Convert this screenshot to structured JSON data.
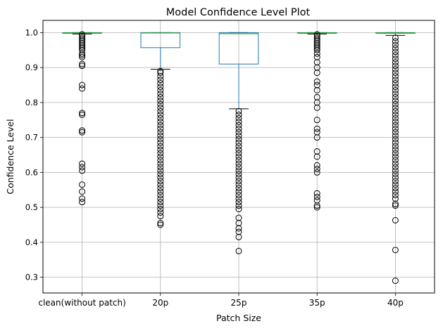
{
  "chart_data": {
    "type": "box",
    "title": "Model Confidence Level Plot",
    "xlabel": "Patch Size",
    "ylabel": "Confidence Level",
    "ylim": [
      0.255,
      1.035
    ],
    "yticks": [
      0.3,
      0.4,
      0.5,
      0.6,
      0.7,
      0.8,
      0.9,
      1.0
    ],
    "ytick_labels": [
      "0.3",
      "0.4",
      "0.5",
      "0.6",
      "0.7",
      "0.8",
      "0.9",
      "1.0"
    ],
    "grid": true,
    "categories": [
      "clean(without patch)",
      "20p",
      "25p",
      "35p",
      "40p"
    ],
    "boxes": [
      {
        "label": "clean(without patch)",
        "q1": 0.998,
        "median": 0.9995,
        "q3": 1.0,
        "whisker_low": 0.996,
        "whisker_high": 1.0,
        "outliers": [
          0.995,
          0.99,
          0.985,
          0.98,
          0.975,
          0.97,
          0.965,
          0.96,
          0.955,
          0.95,
          0.94,
          0.935,
          0.93,
          0.91,
          0.905,
          0.85,
          0.84,
          0.77,
          0.765,
          0.72,
          0.715,
          0.625,
          0.615,
          0.605,
          0.565,
          0.545,
          0.525,
          0.515
        ]
      },
      {
        "label": "20p",
        "q1": 0.957,
        "median": 0.999,
        "q3": 1.0,
        "whisker_low": 0.895,
        "whisker_high": 1.0,
        "outliers": [
          0.89,
          0.885,
          0.875,
          0.865,
          0.855,
          0.845,
          0.835,
          0.825,
          0.815,
          0.805,
          0.795,
          0.785,
          0.775,
          0.765,
          0.755,
          0.745,
          0.735,
          0.725,
          0.715,
          0.705,
          0.695,
          0.685,
          0.675,
          0.665,
          0.655,
          0.645,
          0.635,
          0.625,
          0.615,
          0.605,
          0.595,
          0.585,
          0.575,
          0.565,
          0.555,
          0.545,
          0.535,
          0.525,
          0.515,
          0.505,
          0.495,
          0.485,
          0.475,
          0.455,
          0.45
        ]
      },
      {
        "label": "25p",
        "q1": 0.91,
        "median": 0.997,
        "q3": 1.0,
        "whisker_low": 0.782,
        "whisker_high": 1.0,
        "outliers": [
          0.775,
          0.765,
          0.755,
          0.745,
          0.735,
          0.725,
          0.715,
          0.705,
          0.695,
          0.685,
          0.675,
          0.665,
          0.655,
          0.645,
          0.635,
          0.625,
          0.615,
          0.605,
          0.595,
          0.585,
          0.575,
          0.565,
          0.555,
          0.545,
          0.535,
          0.525,
          0.515,
          0.505,
          0.495,
          0.47,
          0.455,
          0.44,
          0.43,
          0.415,
          0.375
        ]
      },
      {
        "label": "35p",
        "q1": 0.9985,
        "median": 0.9995,
        "q3": 1.0,
        "whisker_low": 0.996,
        "whisker_high": 1.0,
        "outliers": [
          0.995,
          0.99,
          0.985,
          0.98,
          0.975,
          0.97,
          0.965,
          0.96,
          0.955,
          0.95,
          0.94,
          0.93,
          0.915,
          0.9,
          0.885,
          0.86,
          0.85,
          0.835,
          0.815,
          0.8,
          0.785,
          0.75,
          0.725,
          0.715,
          0.7,
          0.66,
          0.645,
          0.62,
          0.61,
          0.6,
          0.54,
          0.53,
          0.52,
          0.505,
          0.5
        ]
      },
      {
        "label": "40p",
        "q1": 0.998,
        "median": 0.9995,
        "q3": 1.0,
        "whisker_low": 0.992,
        "whisker_high": 1.0,
        "outliers": [
          0.985,
          0.975,
          0.965,
          0.955,
          0.945,
          0.935,
          0.925,
          0.915,
          0.905,
          0.895,
          0.885,
          0.875,
          0.865,
          0.855,
          0.845,
          0.835,
          0.825,
          0.815,
          0.805,
          0.795,
          0.785,
          0.775,
          0.765,
          0.755,
          0.745,
          0.735,
          0.725,
          0.715,
          0.705,
          0.695,
          0.685,
          0.675,
          0.665,
          0.655,
          0.645,
          0.635,
          0.625,
          0.615,
          0.605,
          0.595,
          0.585,
          0.575,
          0.565,
          0.555,
          0.545,
          0.535,
          0.525,
          0.51,
          0.505,
          0.463,
          0.378,
          0.29
        ]
      }
    ],
    "colors": {
      "box": "#1f77b4",
      "median": "#2ca02c",
      "whisker": "#1f77b4",
      "cap": "#000000",
      "outlier": "#000000",
      "grid": "#b0b0b0"
    }
  }
}
